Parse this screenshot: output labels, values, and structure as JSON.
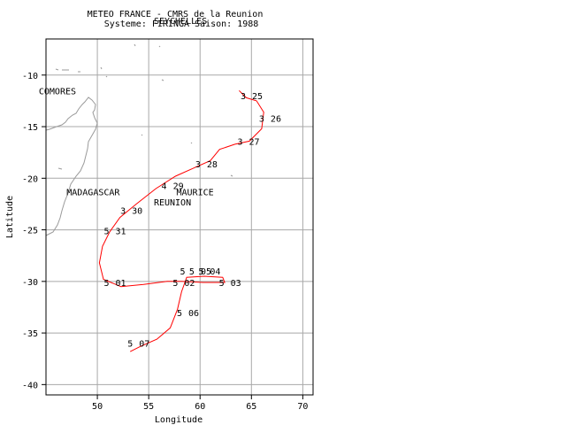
{
  "header": {
    "line1": "METEO FRANCE - CMRS de la Reunion",
    "line2": "Systeme: FIRINGA  Saison: 1988"
  },
  "axes": {
    "xlabel": "Longitude",
    "ylabel": "Latitude",
    "xlim": [
      45,
      71
    ],
    "ylim": [
      -41,
      -6.5
    ],
    "xticks": [
      50,
      55,
      60,
      65,
      70
    ],
    "yticks": [
      -10,
      -15,
      -20,
      -25,
      -30,
      -35,
      -40
    ],
    "grid": true
  },
  "places": [
    {
      "name": "SEYCHELLES",
      "lon": 55.5,
      "lat": -4.7
    },
    {
      "name": "COMORES",
      "lon": 44.3,
      "lat": -11.5
    },
    {
      "name": "MADAGASCAR",
      "lon": 47.0,
      "lat": -21.3
    },
    {
      "name": "MAURICE",
      "lon": 57.7,
      "lat": -21.3
    },
    {
      "name": "REUNION",
      "lon": 55.5,
      "lat": -22.3
    }
  ],
  "chart_data": {
    "type": "line",
    "title": "",
    "xlabel": "Longitude",
    "ylabel": "Latitude",
    "xlim": [
      45,
      71
    ],
    "ylim": [
      -41,
      -6.5
    ],
    "series": [
      {
        "track": [
          [
            63.8,
            -11.5
          ],
          [
            64.5,
            -12.2
          ],
          [
            65.5,
            -12.5
          ],
          [
            66.2,
            -13.6
          ],
          [
            66.0,
            -15.2
          ],
          [
            64.8,
            -16.4
          ],
          [
            63.4,
            -16.7
          ],
          [
            61.9,
            -17.2
          ],
          [
            61.0,
            -18.3
          ],
          [
            59.4,
            -19.0
          ],
          [
            57.6,
            -19.8
          ],
          [
            55.7,
            -21.0
          ],
          [
            53.8,
            -22.5
          ],
          [
            52.2,
            -23.8
          ],
          [
            51.2,
            -25.2
          ],
          [
            50.5,
            -26.6
          ],
          [
            50.2,
            -28.2
          ],
          [
            50.6,
            -29.8
          ],
          [
            52.3,
            -30.5
          ],
          [
            54.5,
            -30.3
          ],
          [
            56.8,
            -30.0
          ],
          [
            58.2,
            -30.0
          ],
          [
            60.3,
            -30.1
          ],
          [
            62.4,
            -30.1
          ],
          [
            62.2,
            -29.6
          ],
          [
            60.4,
            -29.5
          ],
          [
            58.7,
            -29.6
          ],
          [
            58.2,
            -31.0
          ],
          [
            57.8,
            -32.7
          ],
          [
            57.1,
            -34.5
          ],
          [
            55.8,
            -35.6
          ],
          [
            54.2,
            -36.3
          ],
          [
            53.2,
            -36.8
          ]
        ]
      }
    ],
    "positions": [
      {
        "lon": 64.2,
        "lat": -12.0,
        "code": "3",
        "day": "25"
      },
      {
        "lon": 66.0,
        "lat": -14.2,
        "code": "3",
        "day": "26"
      },
      {
        "lon": 63.9,
        "lat": -16.4,
        "code": "3",
        "day": "27"
      },
      {
        "lon": 59.8,
        "lat": -18.6,
        "code": "3",
        "day": "28"
      },
      {
        "lon": 56.5,
        "lat": -20.7,
        "code": "4",
        "day": "29"
      },
      {
        "lon": 52.5,
        "lat": -23.1,
        "code": "3",
        "day": "30"
      },
      {
        "lon": 50.9,
        "lat": -25.1,
        "code": "5",
        "day": "31"
      },
      {
        "lon": 50.9,
        "lat": -30.1,
        "code": "5",
        "day": "01"
      },
      {
        "lon": 57.6,
        "lat": -30.1,
        "code": "5",
        "day": "02"
      },
      {
        "lon": 62.1,
        "lat": -30.1,
        "code": "5",
        "day": "03"
      },
      {
        "lon": 60.1,
        "lat": -29.0,
        "code": "5",
        "day": "04"
      },
      {
        "lon": 59.2,
        "lat": -29.0,
        "code": "5",
        "day": "05"
      },
      {
        "lon": 58.3,
        "lat": -29.0,
        "code": "5",
        "day": ""
      },
      {
        "lon": 58.0,
        "lat": -33.0,
        "code": "5",
        "day": "06"
      },
      {
        "lon": 53.2,
        "lat": -36.0,
        "code": "5",
        "day": "07"
      }
    ]
  }
}
